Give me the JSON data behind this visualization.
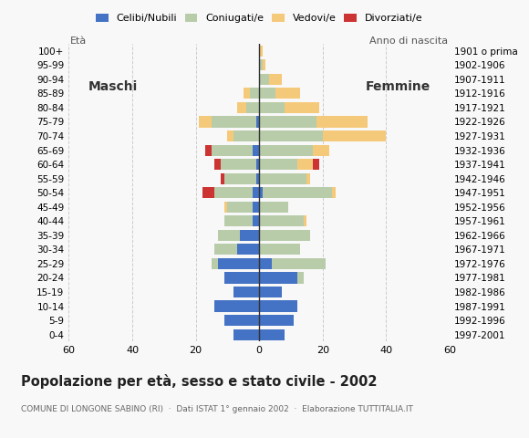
{
  "age_groups": [
    "0-4",
    "5-9",
    "10-14",
    "15-19",
    "20-24",
    "25-29",
    "30-34",
    "35-39",
    "40-44",
    "45-49",
    "50-54",
    "55-59",
    "60-64",
    "65-69",
    "70-74",
    "75-79",
    "80-84",
    "85-89",
    "90-94",
    "95-99",
    "100+"
  ],
  "birth_years": [
    "1997-2001",
    "1992-1996",
    "1987-1991",
    "1982-1986",
    "1977-1981",
    "1972-1976",
    "1967-1971",
    "1962-1966",
    "1957-1961",
    "1952-1956",
    "1947-1951",
    "1942-1946",
    "1937-1941",
    "1932-1936",
    "1927-1931",
    "1922-1926",
    "1917-1921",
    "1912-1916",
    "1907-1911",
    "1902-1906",
    "1901 o prima"
  ],
  "males": {
    "celibi": [
      8,
      11,
      14,
      8,
      11,
      13,
      7,
      6,
      2,
      2,
      2,
      1,
      1,
      2,
      0,
      1,
      0,
      0,
      0,
      0,
      0
    ],
    "coniugati": [
      0,
      0,
      0,
      0,
      0,
      2,
      7,
      7,
      9,
      8,
      12,
      10,
      11,
      13,
      8,
      14,
      4,
      3,
      0,
      0,
      0
    ],
    "vedovi": [
      0,
      0,
      0,
      0,
      0,
      0,
      0,
      0,
      0,
      1,
      0,
      0,
      0,
      0,
      2,
      4,
      3,
      2,
      0,
      0,
      0
    ],
    "divorziati": [
      0,
      0,
      0,
      0,
      0,
      0,
      0,
      0,
      0,
      0,
      4,
      1,
      2,
      2,
      0,
      0,
      0,
      0,
      0,
      0,
      0
    ]
  },
  "females": {
    "nubili": [
      8,
      11,
      12,
      7,
      12,
      4,
      0,
      0,
      0,
      0,
      1,
      0,
      0,
      0,
      0,
      0,
      0,
      0,
      0,
      0,
      0
    ],
    "coniugate": [
      0,
      0,
      0,
      0,
      2,
      17,
      13,
      16,
      14,
      9,
      22,
      15,
      12,
      17,
      20,
      18,
      8,
      5,
      3,
      1,
      0
    ],
    "vedove": [
      0,
      0,
      0,
      0,
      0,
      0,
      0,
      0,
      1,
      0,
      1,
      1,
      5,
      5,
      20,
      16,
      11,
      8,
      4,
      1,
      1
    ],
    "divorziate": [
      0,
      0,
      0,
      0,
      0,
      0,
      0,
      0,
      0,
      0,
      0,
      0,
      2,
      0,
      0,
      0,
      0,
      0,
      0,
      0,
      0
    ]
  },
  "colors": {
    "celibi": "#4472c4",
    "coniugati": "#b8ccaa",
    "vedovi": "#f5c97a",
    "divorziati": "#cc3333"
  },
  "xlim": 60,
  "title": "Popolazione per età, sesso e stato civile - 2002",
  "subtitle": "COMUNE DI LONGONE SABINO (RI)  ·  Dati ISTAT 1° gennaio 2002  ·  Elaborazione TUTTITALIA.IT",
  "xlabel_left": "Maschi",
  "xlabel_right": "Femmine",
  "ylabel_left": "Età",
  "ylabel_right": "Anno di nascita",
  "legend_labels": [
    "Celibi/Nubili",
    "Coniugati/e",
    "Vedovi/e",
    "Divorziati/e"
  ],
  "bg_color": "#f8f8f8"
}
